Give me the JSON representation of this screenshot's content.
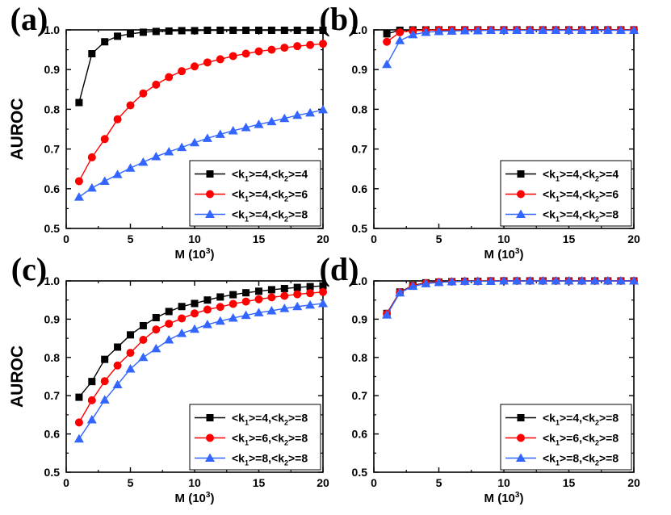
{
  "chart_data": [
    {
      "panel_label": "(a)",
      "type": "line",
      "xlabel": "M (10",
      "xlabel_exp": "3",
      "xlabel_close": ")",
      "ylabel": "AUROC",
      "xlim": [
        0,
        20
      ],
      "ylim": [
        0.5,
        1.0
      ],
      "xticks": [
        "0",
        "5",
        "10",
        "15",
        "20"
      ],
      "yticks": [
        "0.5",
        "0.6",
        "0.7",
        "0.8",
        "0.9",
        "1.0"
      ],
      "legend_position": "bottom-right",
      "x": [
        1,
        2,
        3,
        4,
        5,
        6,
        7,
        8,
        9,
        10,
        11,
        12,
        13,
        14,
        15,
        16,
        17,
        18,
        19,
        20
      ],
      "series": [
        {
          "name": "<k1>=4,<k2>=4",
          "legend": {
            "a": "<k",
            "b": "1",
            "c": ">=4,<k",
            "d": "2",
            "e": ">=4"
          },
          "color": "#000000",
          "marker": "square",
          "values": [
            0.817,
            0.94,
            0.97,
            0.984,
            0.99,
            0.994,
            0.996,
            0.997,
            0.998,
            0.998,
            0.999,
            0.999,
            0.999,
            0.999,
            0.999,
            0.999,
            0.999,
            0.999,
            0.999,
            0.999
          ]
        },
        {
          "name": "<k1>=4,<k2>=6",
          "legend": {
            "a": "<k",
            "b": "1",
            "c": ">=4,<k",
            "d": "2",
            "e": ">=6"
          },
          "color": "#ff0000",
          "marker": "circle",
          "values": [
            0.619,
            0.679,
            0.725,
            0.775,
            0.81,
            0.84,
            0.862,
            0.881,
            0.896,
            0.908,
            0.918,
            0.926,
            0.934,
            0.94,
            0.946,
            0.95,
            0.955,
            0.959,
            0.962,
            0.965
          ]
        },
        {
          "name": "<k1>=4,<k2>=8",
          "legend": {
            "a": "<k",
            "b": "1",
            "c": ">=4,<k",
            "d": "2",
            "e": ">=8"
          },
          "color": "#3366ff",
          "marker": "triangle",
          "values": [
            0.579,
            0.602,
            0.619,
            0.636,
            0.652,
            0.667,
            0.681,
            0.693,
            0.704,
            0.716,
            0.727,
            0.737,
            0.746,
            0.754,
            0.762,
            0.769,
            0.777,
            0.785,
            0.791,
            0.799
          ]
        }
      ]
    },
    {
      "panel_label": "(b)",
      "type": "line",
      "xlabel": "M (10",
      "xlabel_exp": "3",
      "xlabel_close": ")",
      "ylabel": "",
      "xlim": [
        0,
        20
      ],
      "ylim": [
        0.5,
        1.0
      ],
      "xticks": [
        "0",
        "5",
        "10",
        "15",
        "20"
      ],
      "yticks": [
        "0.5",
        "0.6",
        "0.7",
        "0.8",
        "0.9",
        "1.0"
      ],
      "legend_position": "bottom-right",
      "x": [
        1,
        2,
        3,
        4,
        5,
        6,
        7,
        8,
        9,
        10,
        11,
        12,
        13,
        14,
        15,
        16,
        17,
        18,
        19,
        20
      ],
      "series": [
        {
          "name": "<k1>=4,<k2>=4",
          "legend": {
            "a": "<k",
            "b": "1",
            "c": ">=4,<k",
            "d": "2",
            "e": ">=4"
          },
          "color": "#000000",
          "marker": "square",
          "values": [
            0.99,
            0.999,
            1.0,
            1.0,
            1.0,
            1.0,
            1.0,
            1.0,
            1.0,
            1.0,
            1.0,
            1.0,
            1.0,
            1.0,
            1.0,
            1.0,
            1.0,
            1.0,
            1.0,
            1.0
          ]
        },
        {
          "name": "<k1>=4,<k2>=6",
          "legend": {
            "a": "<k",
            "b": "1",
            "c": ">=4,<k",
            "d": "2",
            "e": ">=6"
          },
          "color": "#ff0000",
          "marker": "circle",
          "values": [
            0.97,
            0.994,
            0.998,
            0.999,
            1.0,
            1.0,
            1.0,
            1.0,
            1.0,
            1.0,
            1.0,
            1.0,
            1.0,
            1.0,
            1.0,
            1.0,
            1.0,
            1.0,
            1.0,
            1.0
          ]
        },
        {
          "name": "<k1>=4,<k2>=8",
          "legend": {
            "a": "<k",
            "b": "1",
            "c": ">=4,<k",
            "d": "2",
            "e": ">=8"
          },
          "color": "#3366ff",
          "marker": "triangle",
          "values": [
            0.913,
            0.973,
            0.988,
            0.994,
            0.996,
            0.997,
            0.998,
            0.998,
            0.999,
            0.999,
            0.999,
            0.999,
            0.999,
            0.999,
            0.999,
            0.999,
            0.999,
            0.999,
            0.999,
            0.999
          ]
        }
      ]
    },
    {
      "panel_label": "(c)",
      "type": "line",
      "xlabel": "M (10",
      "xlabel_exp": "3",
      "xlabel_close": ")",
      "ylabel": "AUROC",
      "xlim": [
        0,
        20
      ],
      "ylim": [
        0.5,
        1.0
      ],
      "xticks": [
        "0",
        "5",
        "10",
        "15",
        "20"
      ],
      "yticks": [
        "0.5",
        "0.6",
        "0.7",
        "0.8",
        "0.9",
        "1.0"
      ],
      "legend_position": "bottom-right",
      "x": [
        1,
        2,
        3,
        4,
        5,
        6,
        7,
        8,
        9,
        10,
        11,
        12,
        13,
        14,
        15,
        16,
        17,
        18,
        19,
        20
      ],
      "series": [
        {
          "name": "<k1>=4,<k2>=8",
          "legend": {
            "a": "<k",
            "b": "1",
            "c": ">=4,<k",
            "d": "2",
            "e": ">=8"
          },
          "color": "#000000",
          "marker": "square",
          "values": [
            0.696,
            0.737,
            0.795,
            0.827,
            0.859,
            0.883,
            0.904,
            0.92,
            0.933,
            0.941,
            0.95,
            0.958,
            0.964,
            0.969,
            0.973,
            0.977,
            0.98,
            0.983,
            0.985,
            0.987
          ]
        },
        {
          "name": "<k1>=6,<k2>=8",
          "legend": {
            "a": "<k",
            "b": "1",
            "c": ">=6,<k",
            "d": "2",
            "e": ">=8"
          },
          "color": "#ff0000",
          "marker": "circle",
          "values": [
            0.63,
            0.688,
            0.738,
            0.779,
            0.812,
            0.846,
            0.873,
            0.888,
            0.902,
            0.915,
            0.925,
            0.932,
            0.94,
            0.946,
            0.952,
            0.957,
            0.961,
            0.965,
            0.968,
            0.971
          ]
        },
        {
          "name": "<k1>=8,<k2>=8",
          "legend": {
            "a": "<k",
            "b": "1",
            "c": ">=8,<k",
            "d": "2",
            "e": ">=8"
          },
          "color": "#3366ff",
          "marker": "triangle",
          "values": [
            0.587,
            0.637,
            0.689,
            0.729,
            0.77,
            0.8,
            0.823,
            0.846,
            0.863,
            0.874,
            0.886,
            0.895,
            0.903,
            0.91,
            0.917,
            0.922,
            0.928,
            0.933,
            0.937,
            0.941
          ]
        }
      ]
    },
    {
      "panel_label": "(d)",
      "type": "line",
      "xlabel": "M (10",
      "xlabel_exp": "3",
      "xlabel_close": ")",
      "ylabel": "",
      "xlim": [
        0,
        20
      ],
      "ylim": [
        0.5,
        1.0
      ],
      "xticks": [
        "0",
        "5",
        "10",
        "15",
        "20"
      ],
      "yticks": [
        "0.5",
        "0.6",
        "0.7",
        "0.8",
        "0.9",
        "1.0"
      ],
      "legend_position": "bottom-right",
      "x": [
        1,
        2,
        3,
        4,
        5,
        6,
        7,
        8,
        9,
        10,
        11,
        12,
        13,
        14,
        15,
        16,
        17,
        18,
        19,
        20
      ],
      "series": [
        {
          "name": "<k1>=4,<k2>=8",
          "legend": {
            "a": "<k",
            "b": "1",
            "c": ">=4,<k",
            "d": "2",
            "e": ">=8"
          },
          "color": "#000000",
          "marker": "square",
          "values": [
            0.915,
            0.971,
            0.988,
            0.995,
            0.997,
            0.998,
            0.999,
            0.999,
            1.0,
            1.0,
            1.0,
            1.0,
            1.0,
            1.0,
            1.0,
            1.0,
            1.0,
            1.0,
            1.0,
            1.0
          ]
        },
        {
          "name": "<k1>=6,<k2>=8",
          "legend": {
            "a": "<k",
            "b": "1",
            "c": ">=6,<k",
            "d": "2",
            "e": ">=8"
          },
          "color": "#ff0000",
          "marker": "circle",
          "values": [
            0.914,
            0.97,
            0.987,
            0.994,
            0.997,
            0.998,
            0.999,
            0.999,
            1.0,
            1.0,
            1.0,
            1.0,
            1.0,
            1.0,
            1.0,
            1.0,
            1.0,
            1.0,
            1.0,
            1.0
          ]
        },
        {
          "name": "<k1>=8,<k2>=8",
          "legend": {
            "a": "<k",
            "b": "1",
            "c": ">=8,<k",
            "d": "2",
            "e": ">=8"
          },
          "color": "#3366ff",
          "marker": "triangle",
          "values": [
            0.911,
            0.969,
            0.986,
            0.993,
            0.996,
            0.998,
            0.999,
            0.999,
            0.999,
            1.0,
            1.0,
            1.0,
            1.0,
            1.0,
            1.0,
            1.0,
            1.0,
            1.0,
            1.0,
            1.0
          ]
        }
      ]
    }
  ]
}
